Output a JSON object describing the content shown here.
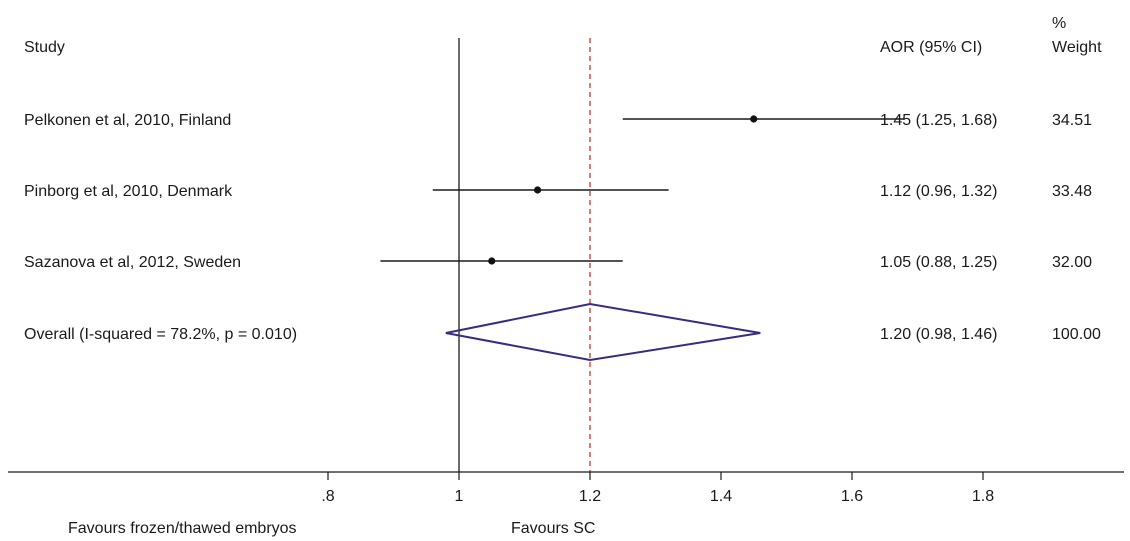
{
  "chart_data": {
    "type": "forest",
    "header": {
      "study_label": "Study",
      "effect_label": "AOR (95% CI)",
      "weight_label_line1": "%",
      "weight_label_line2": "Weight"
    },
    "studies": [
      {
        "label": "Pelkonen et al, 2010, Finland",
        "estimate": 1.45,
        "lower": 1.25,
        "upper": 1.68,
        "ci_text": "1.45 (1.25, 1.68)",
        "weight_text": "34.51"
      },
      {
        "label": "Pinborg et al, 2010, Denmark",
        "estimate": 1.12,
        "lower": 0.96,
        "upper": 1.32,
        "ci_text": "1.12 (0.96, 1.32)",
        "weight_text": "33.48"
      },
      {
        "label": "Sazanova et al, 2012, Sweden",
        "estimate": 1.05,
        "lower": 0.88,
        "upper": 1.25,
        "ci_text": "1.05 (0.88, 1.25)",
        "weight_text": "32.00"
      }
    ],
    "overall": {
      "label": "Overall  (I-squared = 78.2%, p = 0.010)",
      "estimate": 1.2,
      "lower": 0.98,
      "upper": 1.46,
      "ci_text": "1.20 (0.98, 1.46)",
      "weight_text": "100.00"
    },
    "null_value": 1,
    "x_ticks": [
      0.8,
      1,
      1.2,
      1.4,
      1.6,
      1.8
    ],
    "x_tick_labels": [
      ".8",
      "1",
      "1.2",
      "1.4",
      "1.6",
      "1.8"
    ],
    "xlim": [
      0.6,
      1.8
    ],
    "favours_left": "Favours frozen/thawed embryos",
    "favours_right": "Favours SC",
    "colors": {
      "diamond": "#3b2a80",
      "overall_line": "#c0392b",
      "lines": "#1a1a1a"
    }
  }
}
